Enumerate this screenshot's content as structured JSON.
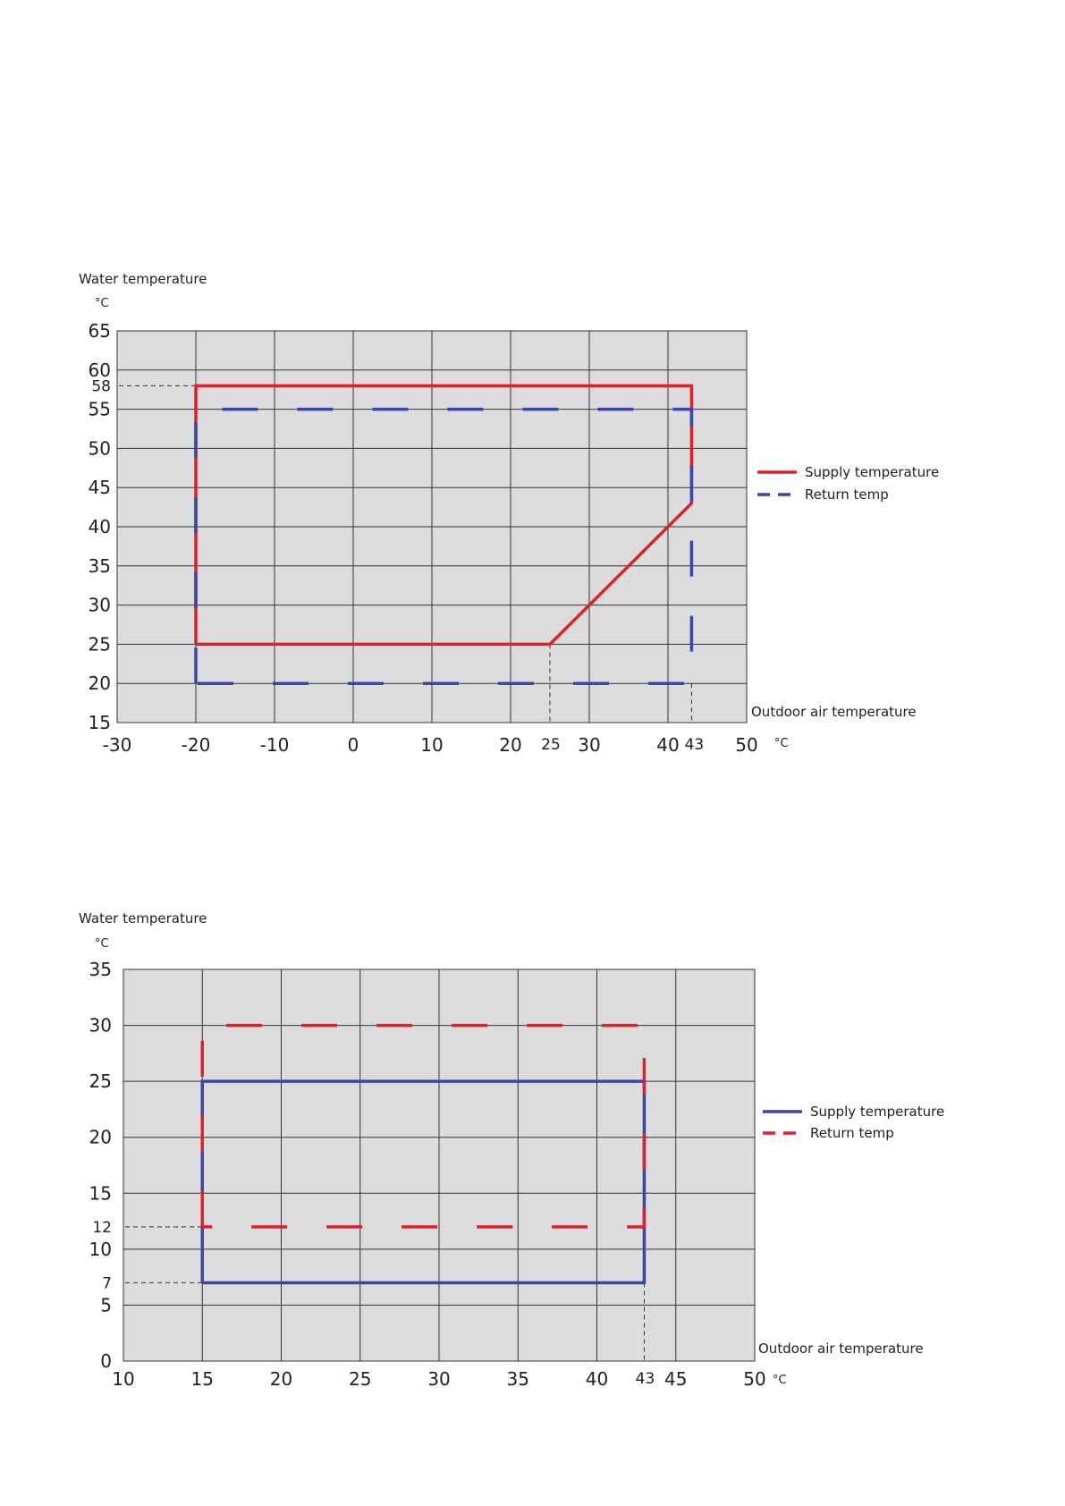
{
  "chart_data": [
    {
      "type": "line",
      "ylabel": "Water temperature",
      "ylabel_unit": "°C",
      "xlabel": "Outdoor air temperature",
      "xlabel_unit": "°C",
      "xlim": [
        -30,
        50
      ],
      "ylim": [
        15,
        65
      ],
      "x_ticks": [
        -30,
        -20,
        -10,
        0,
        10,
        20,
        30,
        40,
        50
      ],
      "y_ticks": [
        15,
        20,
        25,
        30,
        35,
        40,
        45,
        50,
        55,
        60,
        65
      ],
      "x_special": [
        25,
        43
      ],
      "y_special": [
        58
      ],
      "grid": true,
      "legend_position": "right",
      "series": [
        {
          "name": "Supply temperature",
          "style": "solid",
          "color": "#e0202a",
          "points": [
            [
              -20,
              25
            ],
            [
              -20,
              58
            ],
            [
              43,
              58
            ],
            [
              43,
              43
            ],
            [
              25,
              25
            ],
            [
              -20,
              25
            ]
          ]
        },
        {
          "name": "Return temp",
          "style": "dashed",
          "color": "#3a47a6",
          "points": [
            [
              -20,
              20
            ],
            [
              -20,
              55
            ],
            [
              43,
              55
            ],
            [
              43,
              20
            ],
            [
              -20,
              20
            ]
          ]
        }
      ]
    },
    {
      "type": "line",
      "ylabel": "Water temperature",
      "ylabel_unit": "°C",
      "xlabel": "Outdoor air temperature",
      "xlabel_unit": "°C",
      "xlim": [
        10,
        50
      ],
      "ylim": [
        0,
        35
      ],
      "x_ticks": [
        10,
        15,
        20,
        25,
        30,
        35,
        40,
        45,
        50
      ],
      "y_ticks": [
        0,
        5,
        10,
        15,
        20,
        25,
        30,
        35
      ],
      "x_special": [
        43
      ],
      "y_special": [
        7,
        12
      ],
      "grid": true,
      "legend_position": "right",
      "series": [
        {
          "name": "Supply temperature",
          "style": "solid",
          "color": "#3a47a6",
          "points": [
            [
              15,
              7
            ],
            [
              15,
              25
            ],
            [
              43,
              25
            ],
            [
              43,
              7
            ],
            [
              15,
              7
            ]
          ]
        },
        {
          "name": "Return temp",
          "style": "dashed",
          "color": "#e0202a",
          "points": [
            [
              15,
              12
            ],
            [
              15,
              30
            ],
            [
              43,
              30
            ],
            [
              43,
              12
            ],
            [
              15,
              12
            ]
          ]
        }
      ]
    }
  ]
}
